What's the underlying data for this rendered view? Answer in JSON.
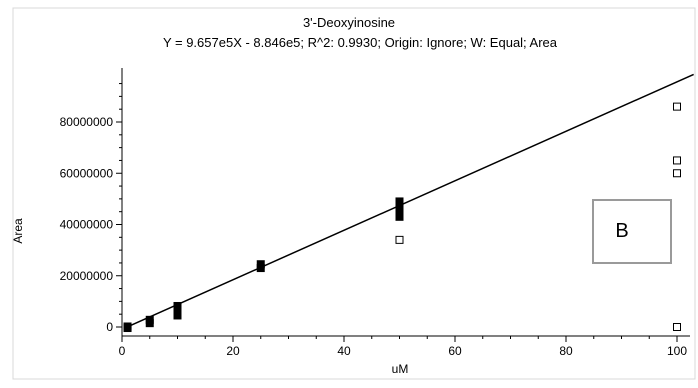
{
  "chart_data": {
    "type": "scatter",
    "title": "3'-Deoxyinosine",
    "subtitle": "Y = 9.657e5X - 8.846e5; R^2: 0.9930; Origin: Ignore; W: Equal; Area",
    "xlabel": "uM",
    "ylabel": "Area",
    "xlim": [
      0,
      103
    ],
    "ylim": [
      -2000000,
      100000000
    ],
    "x_ticks": [
      0,
      20,
      40,
      60,
      80,
      100
    ],
    "y_ticks": [
      0,
      20000000,
      40000000,
      60000000,
      80000000
    ],
    "grid": false,
    "fit_line": {
      "slope": 965700,
      "intercept": -884600
    },
    "series": [
      {
        "marker": "filled-square",
        "points": [
          [
            1,
            -400000
          ],
          [
            1,
            200000
          ],
          [
            5,
            1500000
          ],
          [
            5,
            2800000
          ],
          [
            10,
            4500000
          ],
          [
            10,
            5800000
          ],
          [
            10,
            7000000
          ],
          [
            10,
            8200000
          ],
          [
            25,
            23000000
          ],
          [
            25,
            24500000
          ],
          [
            50,
            43000000
          ],
          [
            50,
            44500000
          ],
          [
            50,
            46000000
          ],
          [
            50,
            47500000
          ],
          [
            50,
            49000000
          ]
        ]
      },
      {
        "marker": "open-square",
        "points": [
          [
            50,
            34000000
          ],
          [
            100,
            86000000
          ],
          [
            100,
            65000000
          ],
          [
            100,
            60000000
          ],
          [
            100,
            0
          ]
        ]
      }
    ],
    "annotation": {
      "text": "B"
    },
    "colors": {
      "axis": "#000000",
      "line": "#000000",
      "box_border": "#999999",
      "marker": "#000000"
    }
  }
}
